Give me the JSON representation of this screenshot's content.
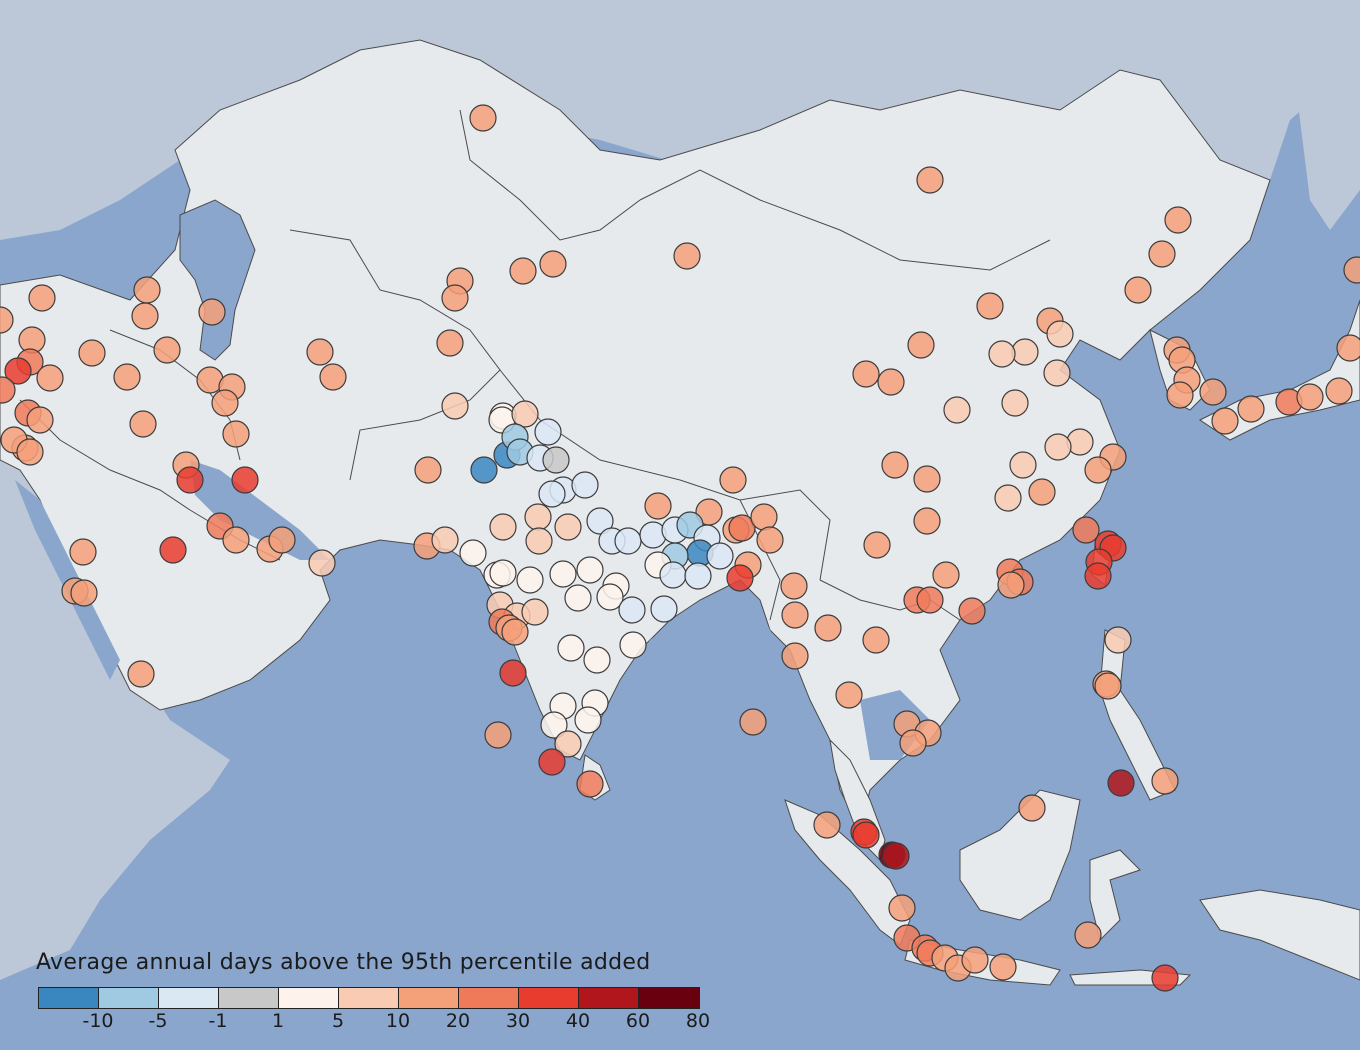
{
  "legend": {
    "title": "Average annual days above the 95th percentile added",
    "bins": [
      {
        "color": "#3a87c0"
      },
      {
        "color": "#9fcae2"
      },
      {
        "color": "#dae8f4"
      },
      {
        "color": "#c8c8c8"
      },
      {
        "color": "#fdf3ec"
      },
      {
        "color": "#f9cbb3"
      },
      {
        "color": "#f4a079"
      },
      {
        "color": "#ef7a5a"
      },
      {
        "color": "#e83c2f"
      },
      {
        "color": "#b0161c"
      },
      {
        "color": "#68000f"
      }
    ],
    "ticks": [
      "-10",
      "-5",
      "-1",
      "1",
      "5",
      "10",
      "20",
      "30",
      "40",
      "60",
      "80"
    ]
  },
  "map": {
    "ocean_color": "#8aa6cc",
    "land_color": "#e7eaed",
    "outside_land_color": "#bcc8d8",
    "border_color": "#4b4b4b"
  }
}
